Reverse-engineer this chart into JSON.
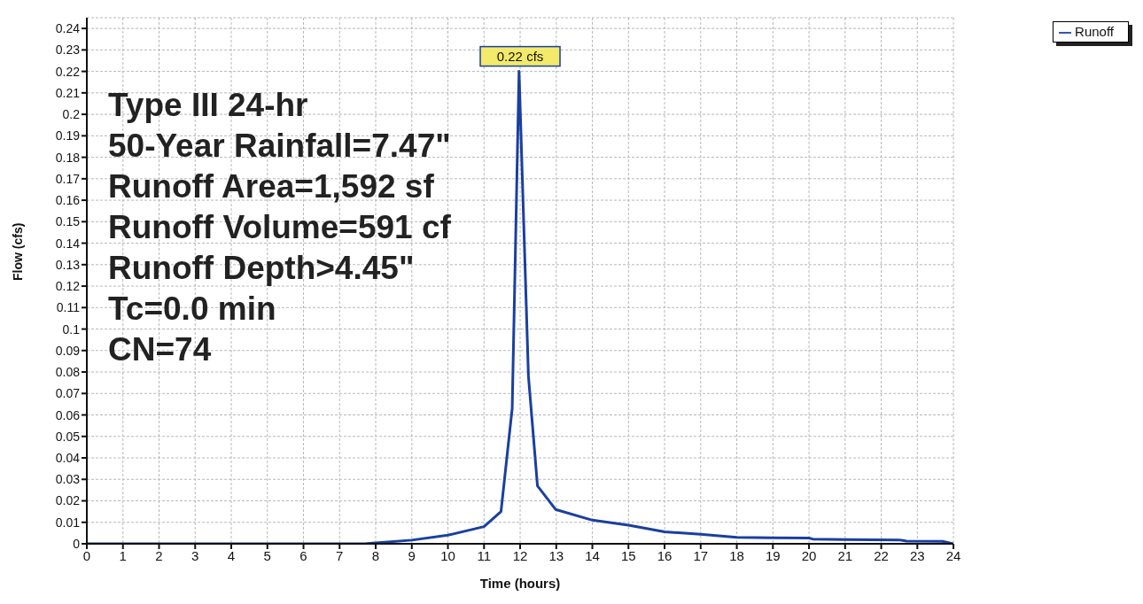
{
  "chart_data": {
    "type": "line",
    "xlabel": "Time  (hours)",
    "ylabel": "Flow  (cfs)",
    "x": [
      0,
      7.7,
      8,
      9,
      10,
      11,
      11.47,
      11.78,
      11.97,
      12.23,
      12.48,
      12.98,
      14,
      15,
      16,
      17,
      18,
      19,
      20,
      20.1,
      21,
      22.5,
      22.7,
      23.7,
      24
    ],
    "series": [
      {
        "name": "Runoff",
        "color": "#1a3fa0",
        "values": [
          0,
          0,
          0.0004,
          0.0017,
          0.004,
          0.008,
          0.015,
          0.063,
          0.22,
          0.078,
          0.027,
          0.016,
          0.011,
          0.0087,
          0.0056,
          0.0044,
          0.003,
          0.0028,
          0.0027,
          0.0022,
          0.002,
          0.0018,
          0.0012,
          0.0011,
          0
        ]
      }
    ],
    "xlim": [
      0,
      24
    ],
    "xticks": [
      0,
      1,
      2,
      3,
      4,
      5,
      6,
      7,
      8,
      9,
      10,
      11,
      12,
      13,
      14,
      15,
      16,
      17,
      18,
      19,
      20,
      21,
      22,
      23,
      24
    ],
    "ylim": [
      0,
      0.245
    ],
    "yticks": [
      0,
      0.01,
      0.02,
      0.03,
      0.04,
      0.05,
      0.06,
      0.07,
      0.08,
      0.09,
      0.1,
      0.11,
      0.12,
      0.13,
      0.14,
      0.15,
      0.16,
      0.17,
      0.18,
      0.19,
      0.2,
      0.21,
      0.22,
      0.23,
      0.24
    ],
    "grid": true,
    "legend": "top right",
    "marker": "none",
    "line_style": "solid",
    "annotations": [
      "Type III 24-hr",
      "50-Year Rainfall=7.47\"",
      "Runoff Area=1,592 sf",
      "Runoff Volume=591 cf",
      "Runoff Depth>4.45\"",
      "Tc=0.0 min",
      "CN=74",
      {
        "text": "0.22 cfs",
        "x": 12,
        "y": 0.22
      }
    ]
  }
}
